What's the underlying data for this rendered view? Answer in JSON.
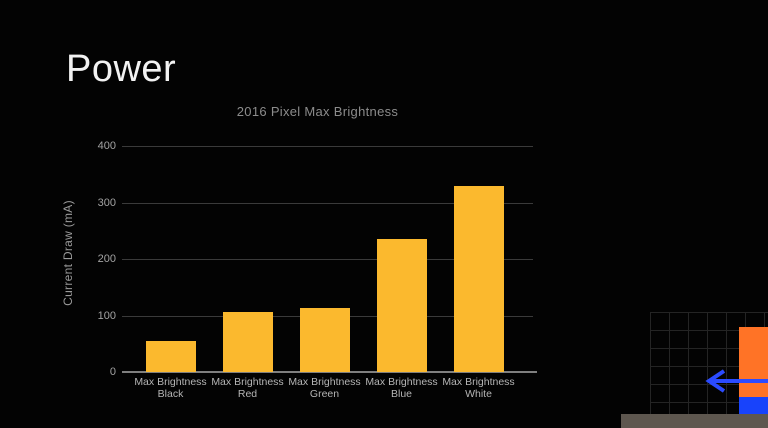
{
  "slide": {
    "title": "Power"
  },
  "chart_data": {
    "type": "bar",
    "title": "2016 Pixel Max Brightness",
    "xlabel": "",
    "ylabel": "Current Draw (mA)",
    "categories": [
      "Max Brightness\nBlack",
      "Max Brightness\nRed",
      "Max Brightness\nGreen",
      "Max Brightness\nBlue",
      "Max Brightness\nWhite"
    ],
    "values": [
      55,
      107,
      113,
      235,
      330
    ],
    "ylim": [
      0,
      400
    ],
    "yticks": [
      0,
      100,
      200,
      300,
      400
    ],
    "bar_color": "#FBB92E",
    "grid": true,
    "legend_position": "none"
  },
  "colors": {
    "background": "#030303",
    "title_text": "#F2F2F2",
    "chart_text_gray": "#9B9B9B",
    "gridline": "#3A3A3A",
    "axis_line": "#7F7F7F",
    "decor_orange": "#FF7326",
    "decor_blue": "#1843FB",
    "arrow_blue": "#2B4BFF",
    "bottom_bar_gray": "#5E574F"
  }
}
